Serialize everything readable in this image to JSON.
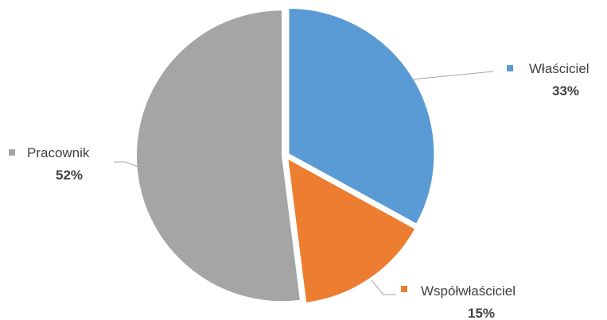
{
  "chart_data": {
    "type": "pie",
    "title": "",
    "slices": [
      {
        "name": "Właściciel",
        "value": 33,
        "value_label": "33%",
        "color": "#5b9bd5"
      },
      {
        "name": "Współwłaściciel",
        "value": 15,
        "value_label": "15%",
        "color": "#ed7d31"
      },
      {
        "name": "Pracownik",
        "value": 52,
        "value_label": "52%",
        "color": "#a5a5a5"
      }
    ],
    "start_angle_deg": 0,
    "direction": "clockwise",
    "legend": "none",
    "data_labels": "outside-with-leader-lines"
  }
}
